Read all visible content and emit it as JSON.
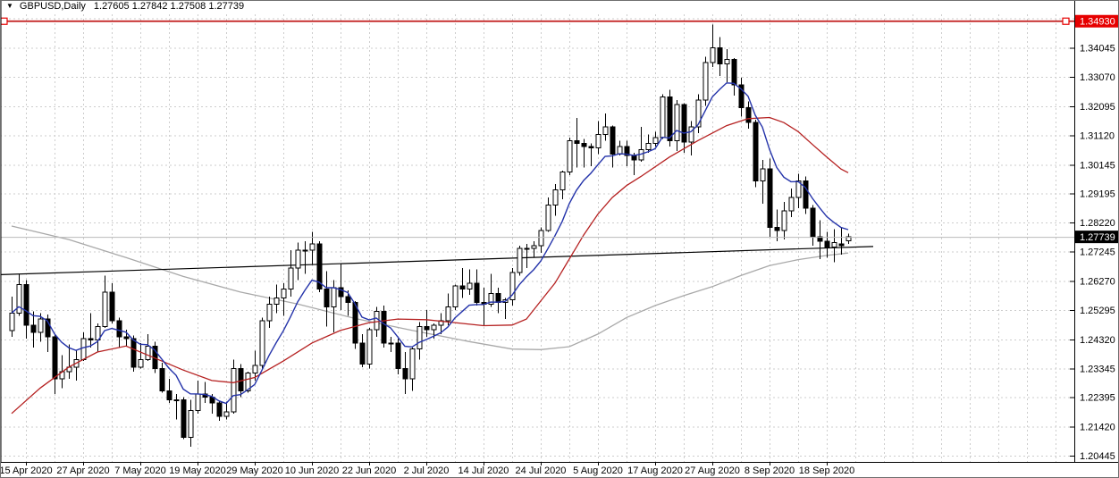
{
  "header": {
    "dropdown_icon": "▼",
    "symbol": "GBPUSD,Daily",
    "ohlc_text": "1.27605 1.27842 1.27508 1.27739",
    "open": "1.27605",
    "high": "1.27842",
    "low": "1.27508",
    "close": "1.27739"
  },
  "colors": {
    "bull_body": "#ffffff",
    "bear_body": "#000000",
    "candle_outline": "#000000",
    "grid": "#cdcdcd",
    "axis_line": "#000000",
    "axis_text": "#000000",
    "ma_fast": "#2433aa",
    "ma_medium": "#b52020",
    "ma_slow": "#a9a9a9",
    "resistance_line": "#c11b1b",
    "resistance_badge_bg": "#e60000",
    "trendline": "#000000",
    "current_price_line": "#b9b9b9",
    "current_price_badge_bg": "#000000",
    "badge_text": "#ffffff",
    "frame": "#6e6e6e"
  },
  "chart_data": {
    "type": "candlestick",
    "symbol": "GBPUSD",
    "timeframe": "Daily",
    "y_axis": {
      "labels": [
        "1.34045",
        "1.33070",
        "1.32095",
        "1.31120",
        "1.30145",
        "1.29195",
        "1.28220",
        "1.27245",
        "1.26270",
        "1.25295",
        "1.24320",
        "1.23345",
        "1.22395",
        "1.21420",
        "1.20445"
      ],
      "extra_grid_price": 1.3502,
      "price_top": 1.3522,
      "price_bottom": 1.2027,
      "grid_step": 0.00975
    },
    "x_labels": [
      {
        "text": "15 Apr 2020",
        "index": 2
      },
      {
        "text": "27 Apr 2020",
        "index": 10
      },
      {
        "text": "7 May 2020",
        "index": 18
      },
      {
        "text": "19 May 2020",
        "index": 26
      },
      {
        "text": "29 May 2020",
        "index": 34
      },
      {
        "text": "10 Jun 2020",
        "index": 42
      },
      {
        "text": "22 Jun 2020",
        "index": 50
      },
      {
        "text": "2 Jul 2020",
        "index": 58
      },
      {
        "text": "14 Jul 2020",
        "index": 66
      },
      {
        "text": "24 Jul 2020",
        "index": 74
      },
      {
        "text": "5 Aug 2020",
        "index": 82
      },
      {
        "text": "17 Aug 2020",
        "index": 90
      },
      {
        "text": "27 Aug 2020",
        "index": 98
      },
      {
        "text": "8 Sep 2020",
        "index": 106
      },
      {
        "text": "18 Sep 2020",
        "index": 114
      }
    ],
    "candles": [
      [
        1.2462,
        1.2575,
        1.244,
        1.252
      ],
      [
        1.252,
        1.265,
        1.251,
        1.2615
      ],
      [
        1.2615,
        1.263,
        1.2435,
        1.248
      ],
      [
        1.248,
        1.2525,
        1.2405,
        1.2455
      ],
      [
        1.2455,
        1.252,
        1.2425,
        1.25
      ],
      [
        1.25,
        1.2515,
        1.239,
        1.244
      ],
      [
        1.244,
        1.245,
        1.225,
        1.23
      ],
      [
        1.23,
        1.238,
        1.227,
        1.2325
      ],
      [
        1.2325,
        1.2415,
        1.23,
        1.234
      ],
      [
        1.234,
        1.2395,
        1.2295,
        1.2365
      ],
      [
        1.2365,
        1.2455,
        1.236,
        1.2435
      ],
      [
        1.2435,
        1.252,
        1.2405,
        1.243
      ],
      [
        1.243,
        1.2485,
        1.239,
        1.2475
      ],
      [
        1.2475,
        1.2644,
        1.247,
        1.259
      ],
      [
        1.259,
        1.262,
        1.2485,
        1.2495
      ],
      [
        1.2495,
        1.2505,
        1.2405,
        1.244
      ],
      [
        1.244,
        1.2465,
        1.241,
        1.2435
      ],
      [
        1.2435,
        1.2445,
        1.2325,
        1.234
      ],
      [
        1.234,
        1.242,
        1.2335,
        1.2365
      ],
      [
        1.2365,
        1.245,
        1.236,
        1.241
      ],
      [
        1.241,
        1.2425,
        1.232,
        1.2335
      ],
      [
        1.2335,
        1.2355,
        1.2255,
        1.226
      ],
      [
        1.226,
        1.23,
        1.222,
        1.223
      ],
      [
        1.223,
        1.225,
        1.2165,
        1.223
      ],
      [
        1.223,
        1.224,
        1.21,
        1.2105
      ],
      [
        1.2105,
        1.223,
        1.2075,
        1.2195
      ],
      [
        1.2195,
        1.2295,
        1.2185,
        1.225
      ],
      [
        1.225,
        1.229,
        1.222,
        1.224
      ],
      [
        1.224,
        1.225,
        1.2185,
        1.222
      ],
      [
        1.222,
        1.2225,
        1.216,
        1.2175
      ],
      [
        1.2175,
        1.2225,
        1.2165,
        1.219
      ],
      [
        1.219,
        1.2365,
        1.2185,
        1.2335
      ],
      [
        1.2335,
        1.235,
        1.224,
        1.226
      ],
      [
        1.226,
        1.2325,
        1.2255,
        1.232
      ],
      [
        1.232,
        1.2395,
        1.2295,
        1.2345
      ],
      [
        1.2345,
        1.2505,
        1.2335,
        1.2495
      ],
      [
        1.2495,
        1.2575,
        1.247,
        1.255
      ],
      [
        1.255,
        1.2615,
        1.252,
        1.257
      ],
      [
        1.257,
        1.262,
        1.251,
        1.26
      ],
      [
        1.26,
        1.273,
        1.2575,
        1.267
      ],
      [
        1.267,
        1.2755,
        1.263,
        1.273
      ],
      [
        1.273,
        1.276,
        1.265,
        1.273
      ],
      [
        1.273,
        1.279,
        1.268,
        1.275
      ],
      [
        1.275,
        1.276,
        1.259,
        1.26
      ],
      [
        1.26,
        1.266,
        1.2475,
        1.254
      ],
      [
        1.254,
        1.263,
        1.2455,
        1.2605
      ],
      [
        1.2605,
        1.2685,
        1.253,
        1.2575
      ],
      [
        1.2575,
        1.2595,
        1.251,
        1.2555
      ],
      [
        1.2555,
        1.256,
        1.24,
        1.242
      ],
      [
        1.242,
        1.245,
        1.234,
        1.235
      ],
      [
        1.235,
        1.247,
        1.2335,
        1.2465
      ],
      [
        1.2465,
        1.254,
        1.244,
        1.2525
      ],
      [
        1.2525,
        1.2545,
        1.2405,
        1.242
      ],
      [
        1.242,
        1.244,
        1.239,
        1.242
      ],
      [
        1.242,
        1.2435,
        1.2315,
        1.2335
      ],
      [
        1.2335,
        1.239,
        1.225,
        1.23
      ],
      [
        1.23,
        1.2405,
        1.226,
        1.24
      ],
      [
        1.24,
        1.249,
        1.2365,
        1.2475
      ],
      [
        1.2475,
        1.253,
        1.244,
        1.2465
      ],
      [
        1.2465,
        1.2485,
        1.2435,
        1.248
      ],
      [
        1.248,
        1.252,
        1.245,
        1.2495
      ],
      [
        1.2495,
        1.2585,
        1.248,
        1.254
      ],
      [
        1.254,
        1.2615,
        1.253,
        1.261
      ],
      [
        1.261,
        1.267,
        1.257,
        1.26
      ],
      [
        1.26,
        1.2665,
        1.258,
        1.262
      ],
      [
        1.262,
        1.2665,
        1.2545,
        1.2555
      ],
      [
        1.2555,
        1.2605,
        1.248,
        1.255
      ],
      [
        1.255,
        1.265,
        1.254,
        1.2585
      ],
      [
        1.2585,
        1.2605,
        1.252,
        1.2555
      ],
      [
        1.2555,
        1.257,
        1.25,
        1.2565
      ],
      [
        1.2565,
        1.267,
        1.2545,
        1.2655
      ],
      [
        1.2655,
        1.2745,
        1.2645,
        1.2735
      ],
      [
        1.2735,
        1.275,
        1.267,
        1.2735
      ],
      [
        1.2735,
        1.276,
        1.2705,
        1.2745
      ],
      [
        1.2745,
        1.2805,
        1.272,
        1.2795
      ],
      [
        1.2795,
        1.2905,
        1.279,
        1.288
      ],
      [
        1.288,
        1.295,
        1.2845,
        1.293
      ],
      [
        1.293,
        1.2995,
        1.29,
        1.299
      ],
      [
        1.299,
        1.3105,
        1.298,
        1.3095
      ],
      [
        1.3095,
        1.317,
        1.3005,
        1.3085
      ],
      [
        1.3085,
        1.31,
        1.3005,
        1.3075
      ],
      [
        1.3075,
        1.3085,
        1.301,
        1.307
      ],
      [
        1.307,
        1.316,
        1.305,
        1.3115
      ],
      [
        1.3115,
        1.3185,
        1.3095,
        1.314
      ],
      [
        1.314,
        1.3145,
        1.3005,
        1.305
      ],
      [
        1.305,
        1.3095,
        1.3045,
        1.3075
      ],
      [
        1.3075,
        1.3095,
        1.301,
        1.3045
      ],
      [
        1.3045,
        1.3055,
        1.298,
        1.303
      ],
      [
        1.303,
        1.314,
        1.3025,
        1.3065
      ],
      [
        1.3065,
        1.3115,
        1.3055,
        1.3085
      ],
      [
        1.3085,
        1.3125,
        1.3075,
        1.3105
      ],
      [
        1.3105,
        1.325,
        1.31,
        1.324
      ],
      [
        1.324,
        1.3265,
        1.3075,
        1.3095
      ],
      [
        1.3095,
        1.323,
        1.306,
        1.3215
      ],
      [
        1.3215,
        1.322,
        1.3055,
        1.309
      ],
      [
        1.309,
        1.316,
        1.3045,
        1.314
      ],
      [
        1.314,
        1.325,
        1.312,
        1.323
      ],
      [
        1.323,
        1.3375,
        1.321,
        1.3355
      ],
      [
        1.3355,
        1.3482,
        1.334,
        1.3405
      ],
      [
        1.3405,
        1.344,
        1.331,
        1.335
      ],
      [
        1.335,
        1.34,
        1.329,
        1.3365
      ],
      [
        1.3365,
        1.337,
        1.3245,
        1.328
      ],
      [
        1.328,
        1.3305,
        1.3175,
        1.3205
      ],
      [
        1.3205,
        1.3225,
        1.3135,
        1.3155
      ],
      [
        1.3155,
        1.3165,
        1.294,
        1.296
      ],
      [
        1.296,
        1.303,
        1.2885,
        1.3
      ],
      [
        1.3,
        1.3035,
        1.2775,
        1.2805
      ],
      [
        1.2805,
        1.2865,
        1.276,
        1.2795
      ],
      [
        1.2795,
        1.289,
        1.2765,
        1.286
      ],
      [
        1.286,
        1.2935,
        1.284,
        1.2905
      ],
      [
        1.2905,
        1.2985,
        1.287,
        1.296
      ],
      [
        1.296,
        1.2975,
        1.285,
        1.287
      ],
      [
        1.287,
        1.288,
        1.2745,
        1.2775
      ],
      [
        1.2775,
        1.283,
        1.27,
        1.276
      ],
      [
        1.276,
        1.279,
        1.2705,
        1.274
      ],
      [
        1.274,
        1.28,
        1.269,
        1.2755
      ],
      [
        1.275,
        1.2805,
        1.2715,
        1.2745
      ],
      [
        1.27605,
        1.27842,
        1.27508,
        1.27739
      ]
    ],
    "overlays": {
      "resistance_line": {
        "price": 1.3493,
        "label": "1.34930",
        "selected": true
      },
      "current_price": {
        "price": 1.27739,
        "label": "1.27739"
      },
      "trendline": {
        "x1_index": -1.5,
        "price1": 1.2648,
        "x2_index": 120.5,
        "price2": 1.2742
      },
      "ma_fast": {
        "name": "fast-ma",
        "method": "ema",
        "period": 8
      },
      "ma_medium": {
        "name": "medium-ma",
        "points": [
          [
            0,
            1.2185
          ],
          [
            4,
            1.227
          ],
          [
            8,
            1.234
          ],
          [
            12,
            1.239
          ],
          [
            16,
            1.241
          ],
          [
            20,
            1.237
          ],
          [
            24,
            1.233
          ],
          [
            28,
            1.2295
          ],
          [
            31,
            1.2288
          ],
          [
            34,
            1.2305
          ],
          [
            38,
            1.236
          ],
          [
            42,
            1.242
          ],
          [
            46,
            1.2462
          ],
          [
            50,
            1.2488
          ],
          [
            54,
            1.25
          ],
          [
            58,
            1.2498
          ],
          [
            62,
            1.2488
          ],
          [
            66,
            1.2478
          ],
          [
            70,
            1.248
          ],
          [
            72,
            1.25
          ],
          [
            74,
            1.256
          ],
          [
            76,
            1.262
          ],
          [
            78,
            1.27
          ],
          [
            80,
            1.278
          ],
          [
            82,
            1.285
          ],
          [
            84,
            1.2905
          ],
          [
            86,
            1.2945
          ],
          [
            88,
            1.2975
          ],
          [
            92,
            1.304
          ],
          [
            96,
            1.3095
          ],
          [
            100,
            1.3145
          ],
          [
            103,
            1.3168
          ],
          [
            106,
            1.3172
          ],
          [
            108,
            1.3155
          ],
          [
            110,
            1.3125
          ],
          [
            112,
            1.3082
          ],
          [
            114,
            1.304
          ],
          [
            116,
            1.3
          ],
          [
            117,
            1.2988
          ]
        ]
      },
      "ma_slow": {
        "name": "slow-ma",
        "points": [
          [
            0,
            1.281
          ],
          [
            8,
            1.2765
          ],
          [
            16,
            1.2705
          ],
          [
            24,
            1.2642
          ],
          [
            32,
            1.259
          ],
          [
            40,
            1.255
          ],
          [
            48,
            1.2502
          ],
          [
            56,
            1.2462
          ],
          [
            64,
            1.2425
          ],
          [
            70,
            1.24
          ],
          [
            74,
            1.2398
          ],
          [
            78,
            1.2408
          ],
          [
            82,
            1.245
          ],
          [
            86,
            1.2505
          ],
          [
            90,
            1.2545
          ],
          [
            94,
            1.2578
          ],
          [
            98,
            1.2608
          ],
          [
            102,
            1.2645
          ],
          [
            106,
            1.2678
          ],
          [
            110,
            1.2698
          ],
          [
            114,
            1.2712
          ],
          [
            117,
            1.272
          ]
        ]
      }
    }
  }
}
